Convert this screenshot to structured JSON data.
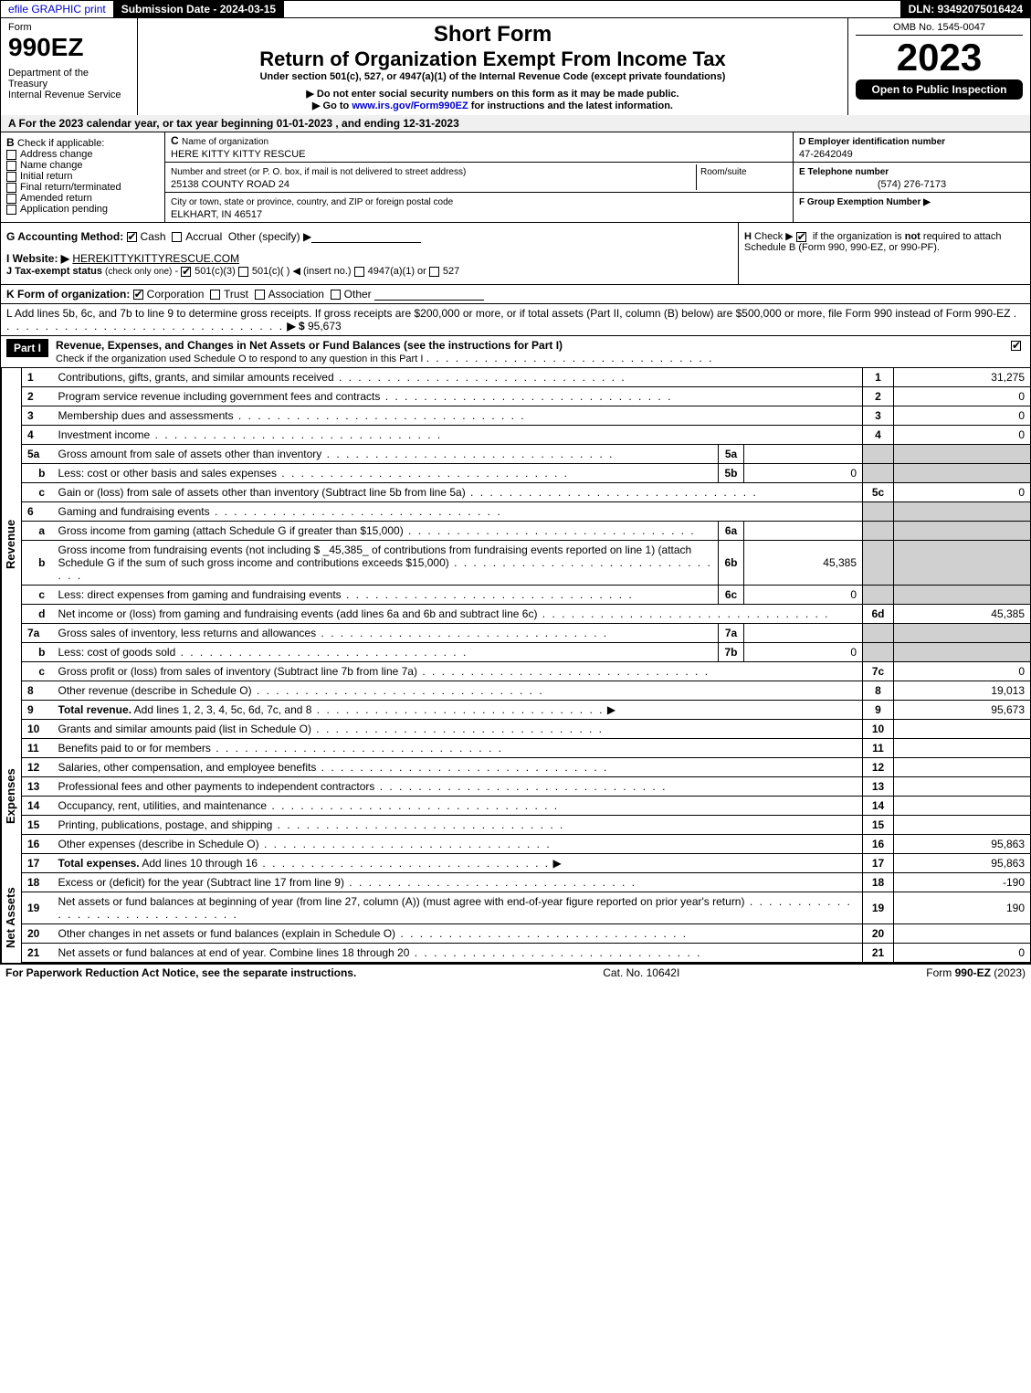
{
  "topbar": {
    "efile": "efile GRAPHIC print",
    "submission_label": "Submission Date - 2024-03-15",
    "dln_label": "DLN: 93492075016424"
  },
  "header": {
    "form_word": "Form",
    "form_number": "990EZ",
    "dept": "Department of the Treasury",
    "irs": "Internal Revenue Service",
    "title1": "Short Form",
    "title2": "Return of Organization Exempt From Income Tax",
    "subtitle": "Under section 501(c), 527, or 4947(a)(1) of the Internal Revenue Code (except private foundations)",
    "note1": "▶ Do not enter social security numbers on this form as it may be made public.",
    "note2": "▶ Go to ",
    "note2_link": "www.irs.gov/Form990EZ",
    "note2_tail": " for instructions and the latest information.",
    "omb": "OMB No. 1545-0047",
    "year": "2023",
    "open_to": "Open to Public Inspection"
  },
  "row_a": "A  For the 2023 calendar year, or tax year beginning 01-01-2023 , and ending 12-31-2023",
  "section_b": {
    "b_title": "B",
    "b_check": "Check if applicable:",
    "opts": {
      "addr": "Address change",
      "name": "Name change",
      "init": "Initial return",
      "final": "Final return/terminated",
      "amend": "Amended return",
      "app": "Application pending"
    },
    "c_label": "C",
    "c_name_label": "Name of organization",
    "c_name": "HERE KITTY KITTY RESCUE",
    "c_street_label": "Number and street (or P. O. box, if mail is not delivered to street address)",
    "c_room_label": "Room/suite",
    "c_street": "25138 COUNTY ROAD 24",
    "c_city_label": "City or town, state or province, country, and ZIP or foreign postal code",
    "c_city": "ELKHART, IN  46517",
    "d_label": "D Employer identification number",
    "d_val": "47-2642049",
    "e_label": "E Telephone number",
    "e_val": "(574) 276-7173",
    "f_label": "F Group Exemption Number  ▶"
  },
  "section_gh": {
    "g_label": "G Accounting Method:",
    "g_cash": "Cash",
    "g_accrual": "Accrual",
    "g_other": "Other (specify) ▶",
    "i_label": "I Website: ▶",
    "i_val": "HEREKITTYKITTYRESCUE.COM",
    "j_label": "J Tax-exempt status",
    "j_tail": "(check only one)",
    "j_501c3": "501(c)(3)",
    "j_501c": "501(c)( )",
    "j_insert": "◀ (insert no.)",
    "j_4947": "4947(a)(1) or",
    "j_527": "527",
    "h_label": "H",
    "h_text1": "Check ▶",
    "h_text2": "if the organization is ",
    "h_not": "not",
    "h_text3": " required to attach Schedule B (Form 990, 990-EZ, or 990-PF)."
  },
  "k_line": {
    "label": "K Form of organization:",
    "corp": "Corporation",
    "trust": "Trust",
    "assoc": "Association",
    "other": "Other"
  },
  "l_line": {
    "text": "L Add lines 5b, 6c, and 7b to line 9 to determine gross receipts. If gross receipts are $200,000 or more, or if total assets (Part II, column (B) below) are $500,000 or more, file Form 990 instead of Form 990-EZ",
    "arrow": "▶ $ ",
    "val": "95,673"
  },
  "part1": {
    "label": "Part I",
    "title": "Revenue, Expenses, and Changes in Net Assets or Fund Balances (see the instructions for Part I)",
    "subtitle": "Check if the organization used Schedule O to respond to any question in this Part I"
  },
  "revenue_rows": [
    {
      "n": "1",
      "desc": "Contributions, gifts, grants, and similar amounts received",
      "line": "1",
      "amt": "31,275"
    },
    {
      "n": "2",
      "desc": "Program service revenue including government fees and contracts",
      "line": "2",
      "amt": "0"
    },
    {
      "n": "3",
      "desc": "Membership dues and assessments",
      "line": "3",
      "amt": "0"
    },
    {
      "n": "4",
      "desc": "Investment income",
      "line": "4",
      "amt": "0"
    },
    {
      "n": "5a",
      "desc": "Gross amount from sale of assets other than inventory",
      "sub": "5a",
      "subval": ""
    },
    {
      "n": "b",
      "desc": "Less: cost or other basis and sales expenses",
      "sub": "5b",
      "subval": "0"
    },
    {
      "n": "c",
      "desc": "Gain or (loss) from sale of assets other than inventory (Subtract line 5b from line 5a)",
      "line": "5c",
      "amt": "0"
    },
    {
      "n": "6",
      "desc": "Gaming and fundraising events"
    },
    {
      "n": "a",
      "desc": "Gross income from gaming (attach Schedule G if greater than $15,000)",
      "sub": "6a",
      "subval": ""
    },
    {
      "n": "b",
      "desc": "Gross income from fundraising events (not including $ _45,385_ of contributions from fundraising events reported on line 1) (attach Schedule G if the sum of such gross income and contributions exceeds $15,000)",
      "sub": "6b",
      "subval": "45,385"
    },
    {
      "n": "c",
      "desc": "Less: direct expenses from gaming and fundraising events",
      "sub": "6c",
      "subval": "0"
    },
    {
      "n": "d",
      "desc": "Net income or (loss) from gaming and fundraising events (add lines 6a and 6b and subtract line 6c)",
      "line": "6d",
      "amt": "45,385"
    },
    {
      "n": "7a",
      "desc": "Gross sales of inventory, less returns and allowances",
      "sub": "7a",
      "subval": ""
    },
    {
      "n": "b",
      "desc": "Less: cost of goods sold",
      "sub": "7b",
      "subval": "0"
    },
    {
      "n": "c",
      "desc": "Gross profit or (loss) from sales of inventory (Subtract line 7b from line 7a)",
      "line": "7c",
      "amt": "0"
    },
    {
      "n": "8",
      "desc": "Other revenue (describe in Schedule O)",
      "line": "8",
      "amt": "19,013"
    },
    {
      "n": "9",
      "desc": "Total revenue. Add lines 1, 2, 3, 4, 5c, 6d, 7c, and 8",
      "line": "9",
      "amt": "95,673",
      "bold": true,
      "arrow": true
    }
  ],
  "expense_rows": [
    {
      "n": "10",
      "desc": "Grants and similar amounts paid (list in Schedule O)",
      "line": "10",
      "amt": ""
    },
    {
      "n": "11",
      "desc": "Benefits paid to or for members",
      "line": "11",
      "amt": ""
    },
    {
      "n": "12",
      "desc": "Salaries, other compensation, and employee benefits",
      "line": "12",
      "amt": ""
    },
    {
      "n": "13",
      "desc": "Professional fees and other payments to independent contractors",
      "line": "13",
      "amt": ""
    },
    {
      "n": "14",
      "desc": "Occupancy, rent, utilities, and maintenance",
      "line": "14",
      "amt": ""
    },
    {
      "n": "15",
      "desc": "Printing, publications, postage, and shipping",
      "line": "15",
      "amt": ""
    },
    {
      "n": "16",
      "desc": "Other expenses (describe in Schedule O)",
      "line": "16",
      "amt": "95,863"
    },
    {
      "n": "17",
      "desc": "Total expenses. Add lines 10 through 16",
      "line": "17",
      "amt": "95,863",
      "bold": true,
      "arrow": true
    }
  ],
  "netassets_rows": [
    {
      "n": "18",
      "desc": "Excess or (deficit) for the year (Subtract line 17 from line 9)",
      "line": "18",
      "amt": "-190"
    },
    {
      "n": "19",
      "desc": "Net assets or fund balances at beginning of year (from line 27, column (A)) (must agree with end-of-year figure reported on prior year's return)",
      "line": "19",
      "amt": "190"
    },
    {
      "n": "20",
      "desc": "Other changes in net assets or fund balances (explain in Schedule O)",
      "line": "20",
      "amt": ""
    },
    {
      "n": "21",
      "desc": "Net assets or fund balances at end of year. Combine lines 18 through 20",
      "line": "21",
      "amt": "0"
    }
  ],
  "sections": {
    "revenue": "Revenue",
    "expenses": "Expenses",
    "netassets": "Net Assets"
  },
  "footer": {
    "left": "For Paperwork Reduction Act Notice, see the separate instructions.",
    "mid": "Cat. No. 10642I",
    "right_pre": "Form ",
    "right_form": "990-EZ",
    "right_year": " (2023)"
  }
}
